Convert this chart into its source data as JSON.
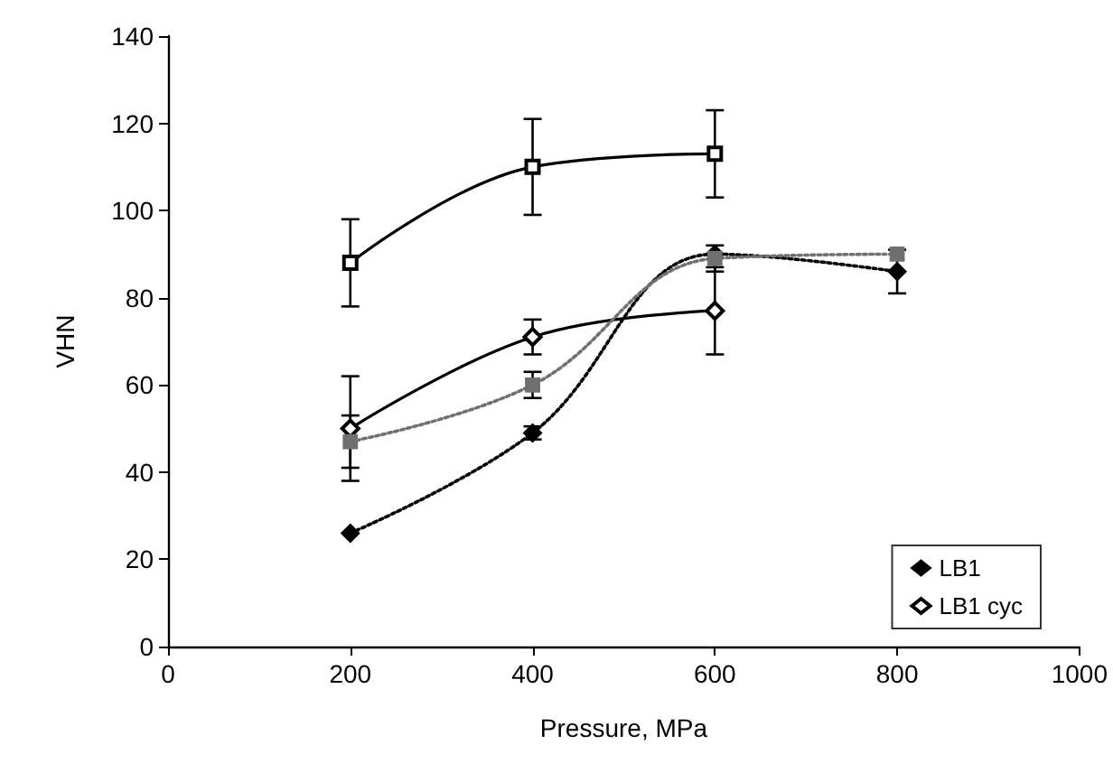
{
  "chart_data": {
    "type": "line",
    "xlabel": "Pressure, MPa",
    "ylabel": "VHN",
    "x": [
      200,
      400,
      600,
      800
    ],
    "xlim": [
      0,
      1000
    ],
    "xticks": [
      0,
      200,
      400,
      600,
      800,
      1000
    ],
    "ylim": [
      0,
      140
    ],
    "yticks": [
      0,
      20,
      40,
      60,
      80,
      100,
      120,
      140
    ],
    "grid": false,
    "legend": "bottom right",
    "series": [
      {
        "name": "LB1",
        "color": "#000000",
        "marker": "diamond",
        "line_style": "dotted",
        "values": [
          26,
          49,
          90,
          86
        ],
        "errors": [
          null,
          1.5,
          null,
          5
        ]
      },
      {
        "name": "LB1 cyc",
        "color": "#000000",
        "marker": "diamond",
        "line_style": "solid",
        "values": [
          50,
          71,
          77,
          null
        ],
        "errors": [
          12,
          4,
          10,
          null
        ]
      },
      {
        "color": "#707070",
        "marker": "square",
        "line_style": "dotted",
        "values": [
          47,
          60,
          89,
          90
        ],
        "errors": [
          6,
          3,
          3,
          null
        ]
      },
      {
        "color": "#000000",
        "marker": "square",
        "line_style": "solid",
        "values": [
          88,
          110,
          113,
          null
        ],
        "errors": [
          10,
          11,
          10,
          null
        ]
      }
    ]
  }
}
